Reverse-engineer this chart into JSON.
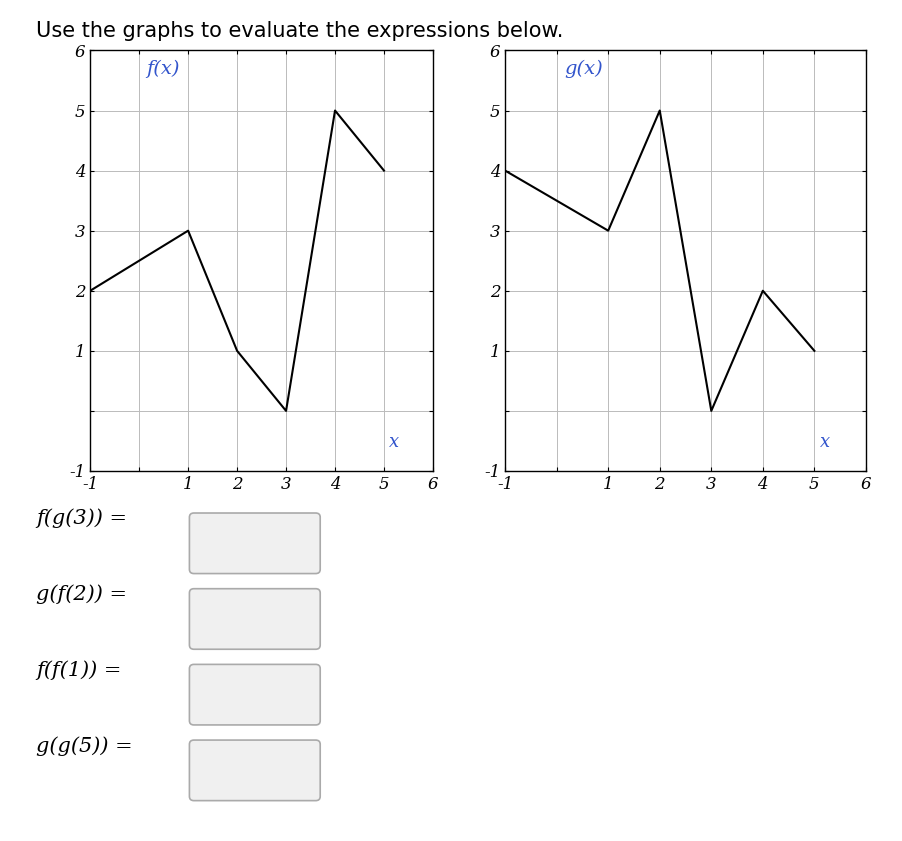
{
  "title": "Use the graphs to evaluate the expressions below.",
  "fx_points": [
    [
      -1,
      2
    ],
    [
      1,
      3
    ],
    [
      2,
      1
    ],
    [
      3,
      0
    ],
    [
      4,
      5
    ],
    [
      5,
      4
    ]
  ],
  "gx_points": [
    [
      -1,
      4
    ],
    [
      1,
      3
    ],
    [
      2,
      5
    ],
    [
      3,
      0
    ],
    [
      4,
      2
    ],
    [
      5,
      1
    ]
  ],
  "fx_label": "f(x)",
  "gx_label": "g(x)",
  "xlabel": "x",
  "xlim": [
    -1,
    6
  ],
  "ylim": [
    -1,
    6
  ],
  "line_color": "#000000",
  "label_color": "#3355cc",
  "grid_color": "#bbbbbb",
  "background_color": "#ffffff",
  "expressions": [
    "f(g(3)) =",
    "g(f(2)) =",
    "f(f(1)) =",
    "g(g(5)) ="
  ]
}
